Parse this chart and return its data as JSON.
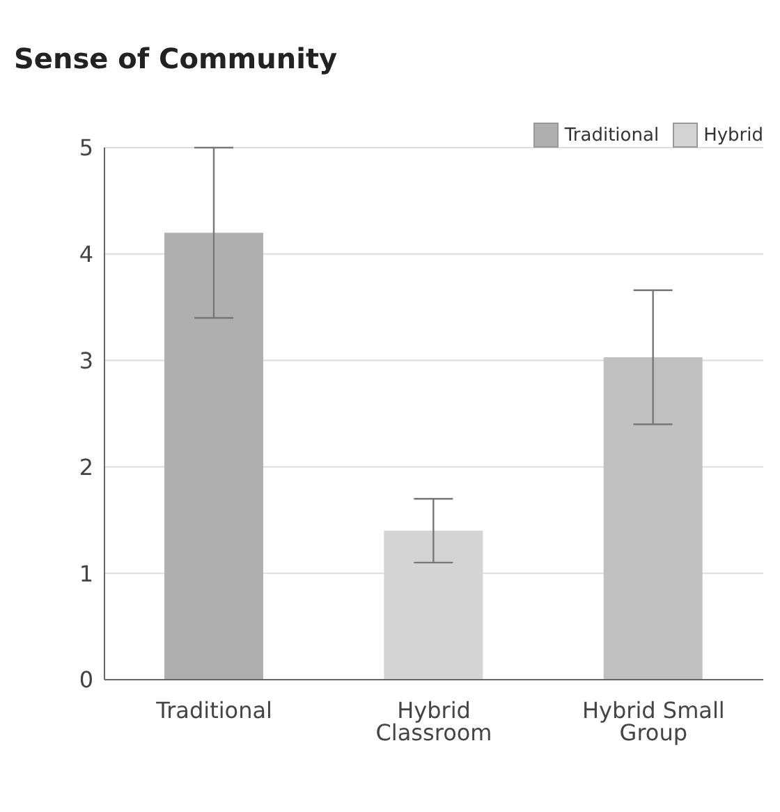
{
  "chart_data": {
    "type": "bar",
    "title": "Sense of Community",
    "categories": [
      "Traditional",
      "Hybrid Classroom",
      "Hybrid Small Group"
    ],
    "series": [
      {
        "name": "Traditional",
        "color": "#afafaf",
        "values": [
          4.2,
          null,
          null
        ],
        "errors": [
          0.8,
          null,
          null
        ]
      },
      {
        "name": "Hybrid",
        "color": "#d4d4d4",
        "colors": [
          null,
          "#d4d4d4",
          "#c0c0c0"
        ],
        "values": [
          null,
          1.4,
          3.03
        ],
        "errors": [
          null,
          0.3,
          0.63
        ]
      }
    ],
    "ylim": [
      0,
      5
    ],
    "yticks": [
      0,
      1,
      2,
      3,
      4,
      5
    ],
    "grid": "y",
    "legend": "top right"
  }
}
